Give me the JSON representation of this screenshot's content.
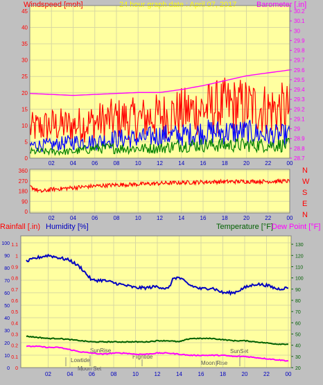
{
  "colors": {
    "panel_bg": "#ffffa0",
    "frame": "#c0c0c0",
    "windspeed": "#ff0000",
    "barometer": "#ff00ff",
    "gust": "#ff0000",
    "avg": "#0000ff",
    "low": "#008000",
    "humidity": "#0000c0",
    "temperature": "#006000",
    "dewpoint": "#ff00ff",
    "title": "#ffff00",
    "direction": "#ff0000"
  },
  "header": {
    "windspeed_label": "Windspeed [mph]",
    "title": "24 hour graph date : April 07, 2017",
    "barometer_label": "Barometer [.in]"
  },
  "direction_letters": [
    "N",
    "W",
    "S",
    "E",
    "N"
  ],
  "lower_labels": {
    "rainfall": "Rainfall [.in)",
    "humidity": "Humidity [%]",
    "temperature": "Temperature [°F]",
    "dewpoint": "Dew Point [°F]"
  },
  "events": {
    "lowtide": "Lowtide",
    "sunrise": "SunRise",
    "moonset": "Moon Set",
    "hightide": "Hightide",
    "moonrise": "Moon Rise",
    "sunset": "SunSet"
  },
  "chart_data": [
    {
      "type": "line",
      "name": "wind_barometer",
      "x_ticks": [
        "02",
        "04",
        "06",
        "08",
        "10",
        "12",
        "14",
        "16",
        "18",
        "20",
        "22",
        "00"
      ],
      "y_left_ticks": [
        "0",
        "5",
        "10",
        "15",
        "20",
        "25",
        "30",
        "35",
        "40",
        "45"
      ],
      "y_left_range": [
        0,
        45
      ],
      "y_right_ticks": [
        "28.7",
        "28.8",
        "28.9",
        "29",
        "29.1",
        "29.2",
        "29.3",
        "29.4",
        "29.5",
        "29.6",
        "29.7",
        "29.8",
        "29.9",
        "30",
        "30.1",
        "30.2"
      ],
      "y_right_range": [
        28.7,
        30.2
      ],
      "series": [
        {
          "name": "Barometer",
          "axis": "right",
          "x": [
            0,
            2,
            4,
            6,
            8,
            10,
            12,
            14,
            16,
            18,
            20,
            22,
            24
          ],
          "values": [
            29.36,
            29.35,
            29.34,
            29.35,
            29.36,
            29.37,
            29.37,
            29.4,
            29.44,
            29.49,
            29.54,
            29.57,
            29.6
          ]
        },
        {
          "name": "Gust",
          "axis": "left",
          "x": [
            0,
            2,
            4,
            6,
            8,
            10,
            12,
            14,
            16,
            18,
            20,
            22,
            24
          ],
          "values": [
            9,
            10,
            10,
            11,
            12,
            12,
            13,
            14,
            15,
            16,
            16,
            15,
            15
          ]
        },
        {
          "name": "Average",
          "axis": "left",
          "x": [
            0,
            2,
            4,
            6,
            8,
            10,
            12,
            14,
            16,
            18,
            20,
            22,
            24
          ],
          "values": [
            4,
            4,
            5,
            5,
            6,
            6,
            7,
            7,
            8,
            8,
            8,
            7,
            7
          ]
        },
        {
          "name": "Low",
          "axis": "left",
          "x": [
            0,
            2,
            4,
            6,
            8,
            10,
            12,
            14,
            16,
            18,
            20,
            22,
            24
          ],
          "values": [
            2,
            2,
            2,
            3,
            3,
            3,
            3,
            4,
            4,
            4,
            4,
            4,
            4
          ]
        }
      ]
    },
    {
      "type": "line",
      "name": "wind_direction",
      "x_ticks": [
        "02",
        "04",
        "06",
        "08",
        "10",
        "12",
        "14",
        "16",
        "18",
        "20",
        "22",
        "00"
      ],
      "y_ticks": [
        "0",
        "90",
        "180",
        "270",
        "360"
      ],
      "y_range": [
        0,
        360
      ],
      "series": [
        {
          "name": "Direction",
          "x": [
            0,
            1,
            2,
            4,
            6,
            8,
            10,
            12,
            14,
            16,
            18,
            20,
            22,
            24
          ],
          "values": [
            220,
            175,
            195,
            210,
            225,
            235,
            240,
            248,
            255,
            260,
            263,
            265,
            265,
            268
          ]
        }
      ]
    },
    {
      "type": "line",
      "name": "rain_humidity_temp",
      "x_ticks": [
        "02",
        "04",
        "06",
        "08",
        "10",
        "12",
        "14",
        "16",
        "18",
        "20",
        "22",
        "00"
      ],
      "rain_ticks": [
        "0",
        "0.1",
        "0.2",
        "0.3",
        "0.4",
        "0.5",
        "0.6",
        "0.7",
        "0.8",
        "0.9",
        "1",
        "1.1"
      ],
      "rain_range": [
        0,
        1.15
      ],
      "humidity_ticks": [
        "0",
        "10",
        "20",
        "30",
        "40",
        "50",
        "60",
        "70",
        "80",
        "90",
        "100"
      ],
      "humidity_range": [
        0,
        100
      ],
      "temp_ticks": [
        "20",
        "30",
        "40",
        "50",
        "60",
        "70",
        "80",
        "90",
        "100",
        "110",
        "120",
        "130"
      ],
      "temp_range": [
        20,
        135
      ],
      "series": [
        {
          "name": "Humidity",
          "axis": "humidity",
          "x": [
            0,
            1,
            2,
            3,
            4,
            5,
            6,
            7,
            8,
            9,
            10,
            11,
            12,
            13,
            13.5,
            14,
            15,
            16,
            17,
            18,
            19,
            20,
            21,
            22,
            23,
            24
          ],
          "values": [
            85,
            88,
            90,
            88,
            86,
            80,
            70,
            70,
            68,
            66,
            64,
            64,
            65,
            63,
            72,
            72,
            66,
            63,
            64,
            60,
            60,
            64,
            67,
            66,
            63,
            64
          ]
        },
        {
          "name": "Temperature",
          "axis": "temp",
          "x": [
            0,
            1,
            2,
            3,
            4,
            5,
            6,
            7,
            8,
            9,
            10,
            11,
            12,
            13,
            14,
            15,
            16,
            17,
            18,
            19,
            20,
            21,
            22,
            23,
            24
          ],
          "values": [
            48,
            47,
            46,
            46,
            45,
            44,
            43,
            43,
            43,
            43,
            43,
            43,
            44,
            44,
            43,
            46,
            46,
            46,
            45,
            44,
            44,
            43,
            42,
            41,
            41
          ]
        },
        {
          "name": "Dew Point",
          "axis": "temp",
          "x": [
            0,
            1,
            2,
            3,
            4,
            5,
            6,
            7,
            8,
            9,
            10,
            11,
            12,
            13,
            14,
            15,
            16,
            17,
            18,
            19,
            20,
            21,
            22,
            23,
            24
          ],
          "values": [
            39,
            39,
            38,
            38,
            36,
            34,
            33,
            32,
            33,
            33,
            32,
            32,
            33,
            33,
            32,
            31,
            31,
            31,
            31,
            30,
            30,
            29,
            28,
            27,
            26
          ]
        }
      ]
    }
  ]
}
